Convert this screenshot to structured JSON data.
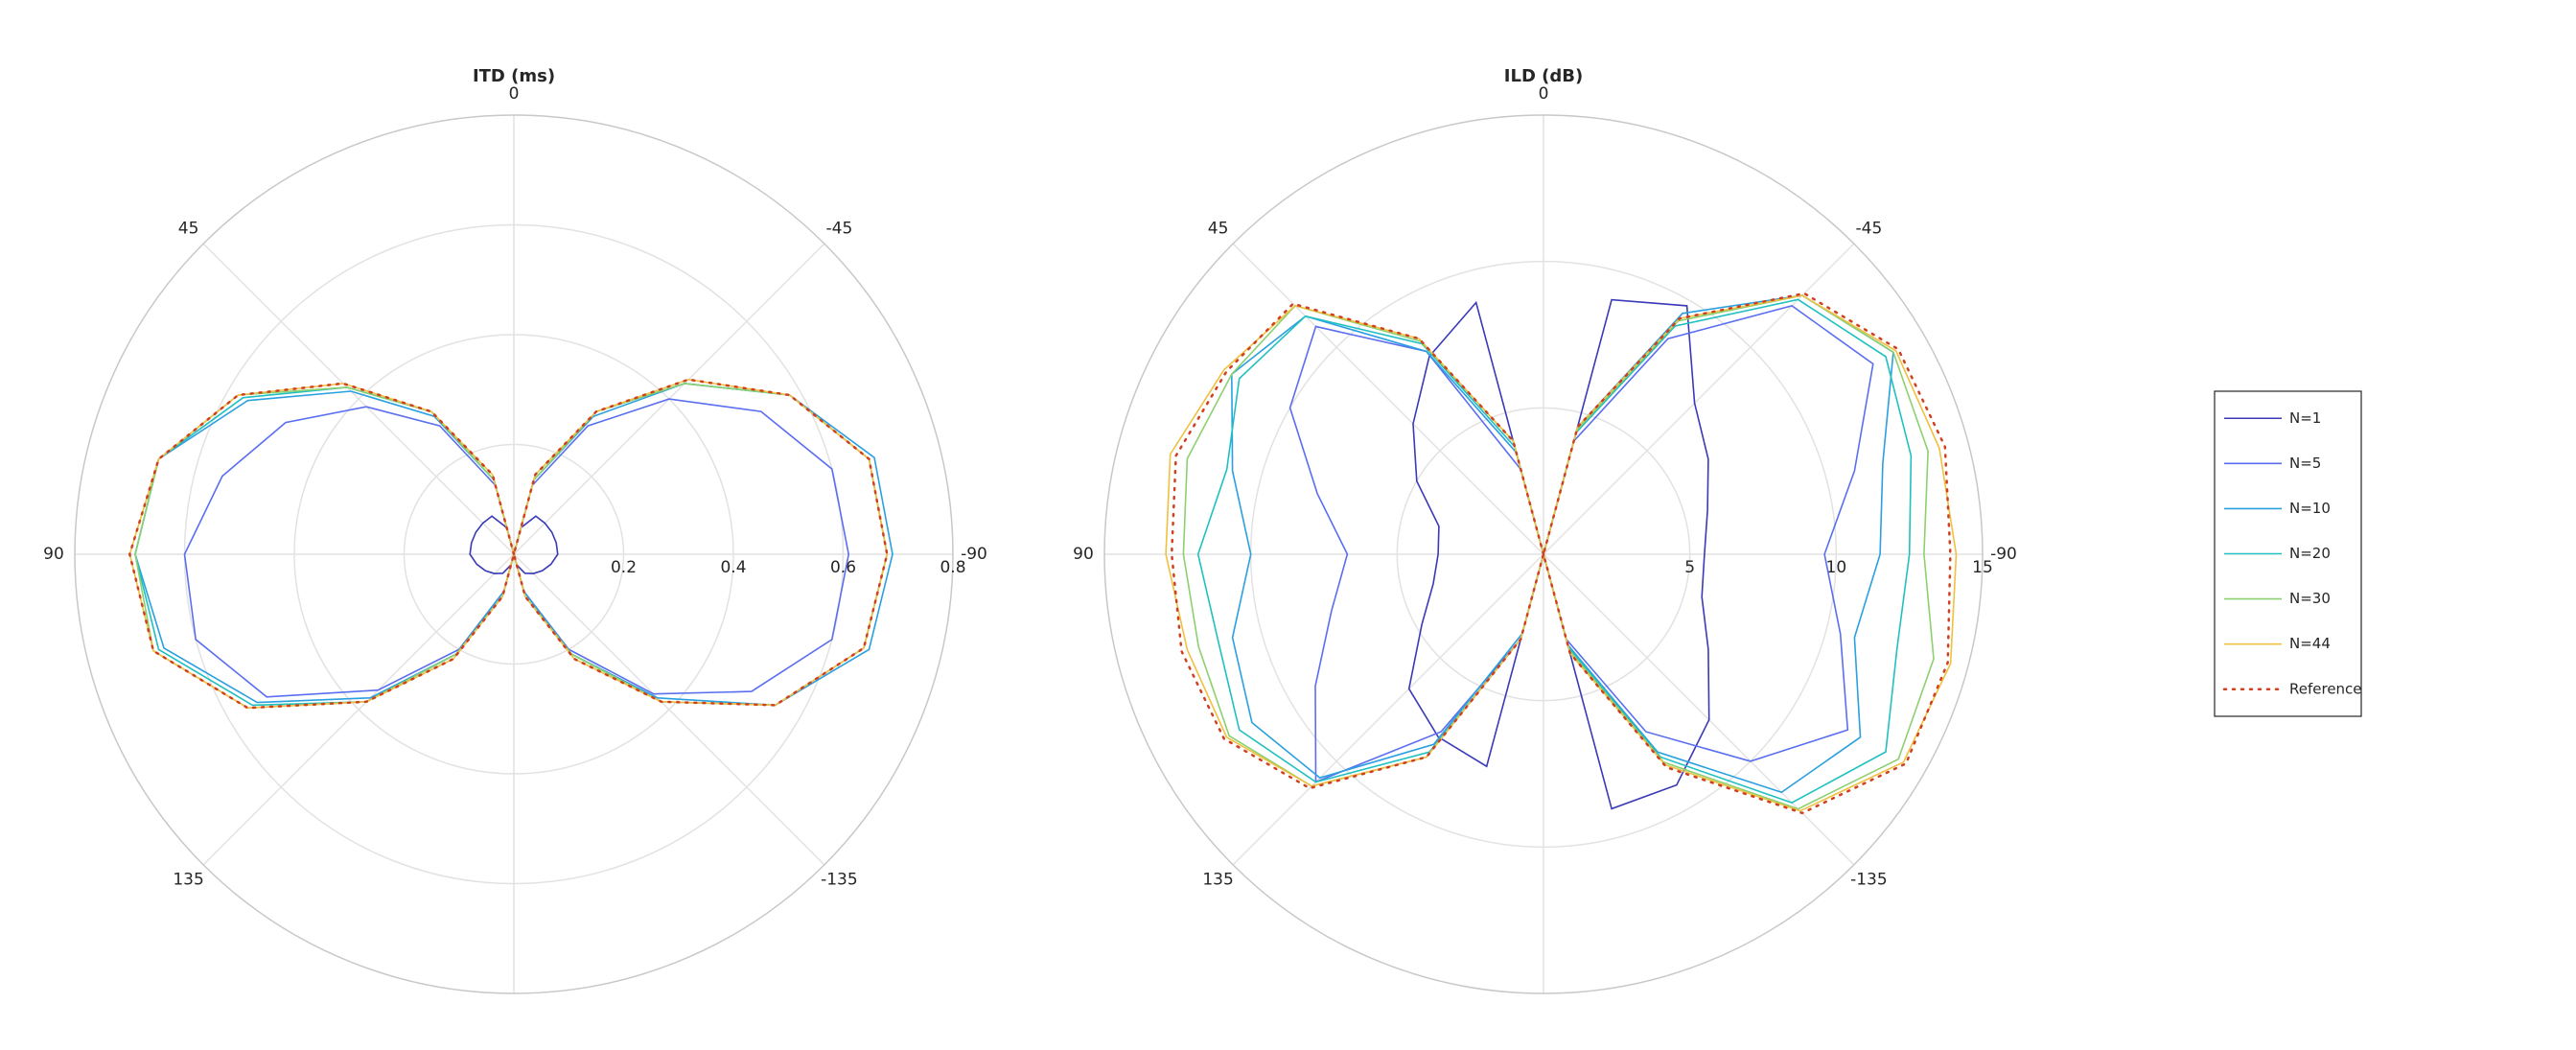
{
  "chart_data": [
    {
      "type": "polar",
      "title": "ITD (ms)",
      "theta": [
        0,
        15,
        30,
        45,
        60,
        75,
        90,
        105,
        120,
        135,
        150,
        165,
        180,
        195,
        210,
        225,
        240,
        255,
        270,
        285,
        300,
        315,
        330,
        345
      ],
      "theta_ticks": [
        0,
        45,
        90,
        135,
        -135,
        -90,
        -45
      ],
      "rlim": [
        0,
        0.8
      ],
      "rticks": [
        0.2,
        0.4,
        0.6,
        0.8
      ],
      "grid": true,
      "series": [
        {
          "name": "N=1",
          "color": "#3a3ab8",
          "values": [
            0,
            0.05,
            0.08,
            0.08,
            0.08,
            0.08,
            0.08,
            0.07,
            0.06,
            0.05,
            0.04,
            0.02,
            0,
            0.02,
            0.04,
            0.05,
            0.06,
            0.07,
            0.08,
            0.08,
            0.08,
            0.08,
            0.08,
            0.05
          ]
        },
        {
          "name": "N=5",
          "color": "#5a6ef0",
          "values": [
            0,
            0.13,
            0.27,
            0.38,
            0.48,
            0.55,
            0.6,
            0.6,
            0.52,
            0.35,
            0.2,
            0.07,
            0,
            0.07,
            0.2,
            0.36,
            0.5,
            0.6,
            0.61,
            0.6,
            0.52,
            0.4,
            0.27,
            0.13
          ]
        },
        {
          "name": "N=10",
          "color": "#2aa0e0",
          "values": [
            0,
            0.14,
            0.29,
            0.42,
            0.56,
            0.67,
            0.69,
            0.66,
            0.54,
            0.37,
            0.21,
            0.07,
            0,
            0.07,
            0.21,
            0.37,
            0.55,
            0.67,
            0.69,
            0.68,
            0.58,
            0.44,
            0.29,
            0.14
          ]
        },
        {
          "name": "N=20",
          "color": "#20c0c0",
          "values": [
            0,
            0.14,
            0.3,
            0.43,
            0.57,
            0.67,
            0.69,
            0.67,
            0.55,
            0.38,
            0.21,
            0.08,
            0,
            0.08,
            0.21,
            0.38,
            0.55,
            0.66,
            0.68,
            0.67,
            0.58,
            0.44,
            0.3,
            0.14
          ]
        },
        {
          "name": "N=30",
          "color": "#8cd070",
          "values": [
            0,
            0.14,
            0.3,
            0.43,
            0.58,
            0.67,
            0.69,
            0.68,
            0.56,
            0.38,
            0.21,
            0.08,
            0,
            0.08,
            0.21,
            0.38,
            0.55,
            0.66,
            0.68,
            0.67,
            0.58,
            0.44,
            0.3,
            0.14
          ]
        },
        {
          "name": "N=44",
          "color": "#f0c040",
          "values": [
            0,
            0.15,
            0.3,
            0.44,
            0.58,
            0.67,
            0.7,
            0.68,
            0.56,
            0.38,
            0.22,
            0.08,
            0,
            0.08,
            0.22,
            0.38,
            0.55,
            0.66,
            0.68,
            0.67,
            0.58,
            0.45,
            0.3,
            0.15
          ]
        },
        {
          "name": "Reference",
          "color": "#d04020",
          "dash": "dotted",
          "values": [
            0,
            0.15,
            0.3,
            0.44,
            0.58,
            0.67,
            0.7,
            0.68,
            0.56,
            0.38,
            0.22,
            0.08,
            0,
            0.08,
            0.22,
            0.38,
            0.55,
            0.66,
            0.68,
            0.67,
            0.58,
            0.45,
            0.3,
            0.15
          ]
        }
      ]
    },
    {
      "type": "polar",
      "title": "ILD (dB)",
      "theta": [
        0,
        15,
        30,
        45,
        60,
        75,
        90,
        105,
        120,
        135,
        150,
        165,
        180,
        195,
        210,
        225,
        240,
        255,
        270,
        285,
        300,
        315,
        330,
        345
      ],
      "theta_ticks": [
        0,
        45,
        90,
        135,
        -135,
        -90,
        -45
      ],
      "rlim": [
        0,
        15
      ],
      "rticks": [
        5,
        10,
        15
      ],
      "grid": true,
      "legend": "right",
      "series": [
        {
          "name": "N=1",
          "color": "#3a3ab8",
          "values": [
            0,
            8.9,
            7.8,
            6.3,
            5,
            3.7,
            3.6,
            3.9,
            4.8,
            6.5,
            7.2,
            7.5,
            0,
            9,
            9.1,
            8,
            6.5,
            5.6,
            5.5,
            5.8,
            6.5,
            7.3,
            9.8,
            9
          ]
        },
        {
          "name": "N=5",
          "color": "#5a6ef0",
          "values": [
            0,
            3,
            8,
            11,
            10,
            8,
            6.7,
            7.5,
            9,
            11,
            7,
            3,
            0,
            3,
            7,
            10,
            12,
            10.5,
            9.6,
            11,
            13,
            12,
            8.5,
            4
          ]
        },
        {
          "name": "N=10",
          "color": "#2aa0e0",
          "values": [
            0,
            3.6,
            8,
            11.5,
            12.3,
            11,
            10,
            11,
            11.5,
            10.8,
            7.5,
            2.8,
            0,
            3.2,
            7.8,
            11.5,
            12.5,
            11,
            11.5,
            12,
            13.8,
            12.5,
            9.5,
            4.5
          ]
        },
        {
          "name": "N=20",
          "color": "#20c0c0",
          "values": [
            0,
            3.8,
            8.3,
            11.5,
            12,
            11.2,
            11.8,
            11.5,
            12,
            11,
            7.8,
            3,
            0,
            3.3,
            8,
            12,
            13.5,
            12.5,
            12.5,
            13,
            13.5,
            12.3,
            9,
            4.3
          ]
        },
        {
          "name": "N=30",
          "color": "#8cd070",
          "values": [
            0,
            4,
            8.4,
            12,
            12.3,
            12.6,
            12.3,
            12.2,
            12.4,
            11.2,
            8,
            3,
            0,
            3.4,
            8.2,
            12.3,
            14,
            13.8,
            13,
            13.6,
            13.8,
            12.5,
            9.2,
            4.4
          ]
        },
        {
          "name": "N=44",
          "color": "#f0c040",
          "values": [
            0,
            4,
            8.5,
            12,
            12.6,
            13.2,
            12.9,
            12.6,
            12.5,
            11.2,
            8,
            3,
            0,
            3.5,
            8.3,
            12.4,
            14.2,
            14.4,
            14.1,
            14,
            13.9,
            12.5,
            9.3,
            4.5
          ]
        },
        {
          "name": "Reference",
          "color": "#d04020",
          "dash": "dotted",
          "values": [
            0,
            4,
            8.5,
            12.1,
            12.5,
            13,
            12.7,
            12.8,
            12.6,
            11.3,
            8,
            3,
            0,
            3.5,
            8.4,
            12.5,
            14.3,
            14.3,
            13.9,
            14.2,
            14,
            12.6,
            9.3,
            4.5
          ]
        }
      ]
    }
  ]
}
